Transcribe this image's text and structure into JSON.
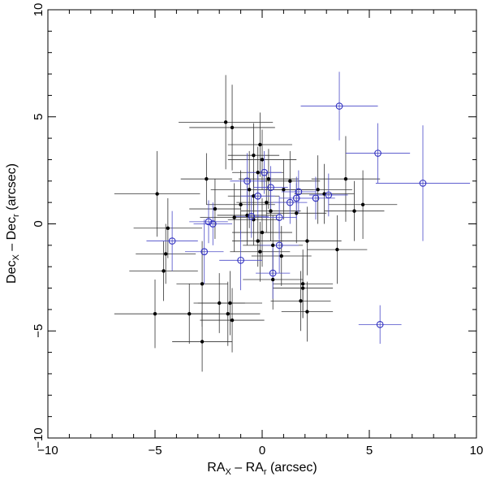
{
  "chart_data": {
    "type": "scatter",
    "title": "",
    "xlabel": {
      "main": "RA",
      "sub1": "X",
      "mid": " – RA",
      "sub2": "r",
      "tail": " (arcsec)"
    },
    "ylabel": {
      "main": "Dec",
      "sub1": "X",
      "mid": " – Dec",
      "sub2": "r",
      "tail": " (arcsec)"
    },
    "xlim": [
      -10,
      10
    ],
    "ylim": [
      -10,
      10
    ],
    "xticks": [
      -10,
      -5,
      0,
      5,
      10
    ],
    "yticks": [
      -10,
      -5,
      0,
      5,
      10
    ],
    "xtick_labels": [
      "−10",
      "−5",
      "0",
      "5",
      "10"
    ],
    "ytick_labels": [
      "−10",
      "−5",
      "0",
      "5",
      "10"
    ],
    "colors": {
      "black_series": "#000000",
      "blue_series": "#3030c0",
      "errorbar_black": "#333333",
      "errorbar_blue": "#4a4ac8",
      "frame": "#000000"
    },
    "series": [
      {
        "name": "filled",
        "marker": "filled-circle",
        "points": [
          {
            "x": -4.9,
            "y": 1.4,
            "ex": 2.0,
            "ey": 2.0
          },
          {
            "x": -4.4,
            "y": -0.2,
            "ex": 1.6,
            "ey": 1.4
          },
          {
            "x": -4.5,
            "y": -1.4,
            "ex": 1.4,
            "ey": 1.4
          },
          {
            "x": -4.6,
            "y": -2.2,
            "ex": 1.6,
            "ey": 1.4
          },
          {
            "x": -5.0,
            "y": -4.2,
            "ex": 1.9,
            "ey": 1.6
          },
          {
            "x": -3.4,
            "y": -4.2,
            "ex": 1.4,
            "ey": 1.4
          },
          {
            "x": -2.8,
            "y": -5.5,
            "ex": 1.4,
            "ey": 1.4
          },
          {
            "x": -2.8,
            "y": -2.8,
            "ex": 1.2,
            "ey": 2.0
          },
          {
            "x": -2.6,
            "y": 2.1,
            "ex": 1.2,
            "ey": 1.2
          },
          {
            "x": -2.2,
            "y": 0.7,
            "ex": 1.2,
            "ey": 1.4
          },
          {
            "x": -1.7,
            "y": 4.75,
            "ex": 2.2,
            "ey": 2.2
          },
          {
            "x": -1.4,
            "y": 4.5,
            "ex": 2.0,
            "ey": 2.0
          },
          {
            "x": -1.3,
            "y": 0.3,
            "ex": 1.6,
            "ey": 1.6
          },
          {
            "x": -1.5,
            "y": -3.7,
            "ex": 1.5,
            "ey": 1.5
          },
          {
            "x": -1.6,
            "y": -4.2,
            "ex": 1.5,
            "ey": 1.5
          },
          {
            "x": -1.4,
            "y": -4.5,
            "ex": 1.5,
            "ey": 1.5
          },
          {
            "x": -2.0,
            "y": -3.7,
            "ex": 1.2,
            "ey": 1.4
          },
          {
            "x": -1.0,
            "y": 0.9,
            "ex": 1.6,
            "ey": 1.6
          },
          {
            "x": -0.6,
            "y": 1.6,
            "ex": 1.8,
            "ey": 1.8
          },
          {
            "x": -0.4,
            "y": 3.2,
            "ex": 1.2,
            "ey": 1.5
          },
          {
            "x": -0.2,
            "y": 2.4,
            "ex": 1.2,
            "ey": 1.2
          },
          {
            "x": -0.1,
            "y": 3.7,
            "ex": 1.5,
            "ey": 1.5
          },
          {
            "x": 0.0,
            "y": 3.0,
            "ex": 1.6,
            "ey": 1.4
          },
          {
            "x": 0.3,
            "y": 2.1,
            "ex": 1.4,
            "ey": 1.4
          },
          {
            "x": -0.7,
            "y": 0.4,
            "ex": 1.4,
            "ey": 1.4
          },
          {
            "x": -0.4,
            "y": 1.3,
            "ex": 1.2,
            "ey": 1.2
          },
          {
            "x": 0.2,
            "y": 1.0,
            "ex": 1.4,
            "ey": 1.4
          },
          {
            "x": 0.4,
            "y": 0.6,
            "ex": 1.4,
            "ey": 1.4
          },
          {
            "x": -0.4,
            "y": 0.2,
            "ex": 1.2,
            "ey": 1.2
          },
          {
            "x": 0.0,
            "y": -0.4,
            "ex": 1.4,
            "ey": 1.6
          },
          {
            "x": -0.2,
            "y": -0.8,
            "ex": 1.2,
            "ey": 1.2
          },
          {
            "x": -0.1,
            "y": -1.3,
            "ex": 1.4,
            "ey": 1.4
          },
          {
            "x": 0.5,
            "y": -1.0,
            "ex": 1.4,
            "ey": 1.4
          },
          {
            "x": 0.5,
            "y": -2.6,
            "ex": 1.4,
            "ey": 1.4
          },
          {
            "x": 0.9,
            "y": -1.5,
            "ex": 1.4,
            "ey": 1.4
          },
          {
            "x": 1.0,
            "y": 1.6,
            "ex": 1.4,
            "ey": 1.4
          },
          {
            "x": 1.3,
            "y": 2.0,
            "ex": 1.4,
            "ey": 1.4
          },
          {
            "x": 1.6,
            "y": 0.5,
            "ex": 1.4,
            "ey": 1.4
          },
          {
            "x": 1.9,
            "y": -2.8,
            "ex": 1.4,
            "ey": 1.6
          },
          {
            "x": 1.8,
            "y": -3.6,
            "ex": 1.4,
            "ey": 1.4
          },
          {
            "x": 2.1,
            "y": -4.1,
            "ex": 1.2,
            "ey": 1.4
          },
          {
            "x": 1.9,
            "y": -3.0,
            "ex": 1.4,
            "ey": 1.4
          },
          {
            "x": 2.1,
            "y": -0.8,
            "ex": 1.6,
            "ey": 1.6
          },
          {
            "x": 2.6,
            "y": 1.6,
            "ex": 1.6,
            "ey": 1.6
          },
          {
            "x": 2.9,
            "y": 1.4,
            "ex": 1.4,
            "ey": 1.4
          },
          {
            "x": 3.5,
            "y": -1.2,
            "ex": 1.4,
            "ey": 1.6
          },
          {
            "x": 3.9,
            "y": 2.1,
            "ex": 1.6,
            "ey": 2.0
          },
          {
            "x": 4.3,
            "y": 0.6,
            "ex": 1.4,
            "ey": 1.4
          },
          {
            "x": 4.7,
            "y": 0.9,
            "ex": 1.6,
            "ey": 1.6
          }
        ]
      },
      {
        "name": "open",
        "marker": "open-circle",
        "points": [
          {
            "x": 3.6,
            "y": 5.5,
            "ex": 1.8,
            "ey": 1.6
          },
          {
            "x": 5.4,
            "y": 3.3,
            "ex": 1.5,
            "ey": 1.4
          },
          {
            "x": 7.5,
            "y": 1.9,
            "ex": 2.2,
            "ey": 2.7
          },
          {
            "x": 5.5,
            "y": -4.7,
            "ex": 1.0,
            "ey": 0.9
          },
          {
            "x": -4.2,
            "y": -0.8,
            "ex": 1.2,
            "ey": 1.4
          },
          {
            "x": -2.7,
            "y": -1.3,
            "ex": 0.9,
            "ey": 1.5
          },
          {
            "x": -2.5,
            "y": 0.1,
            "ex": 0.9,
            "ey": 1.0
          },
          {
            "x": -2.3,
            "y": 0.0,
            "ex": 0.9,
            "ey": 1.0
          },
          {
            "x": -1.0,
            "y": -1.7,
            "ex": 1.0,
            "ey": 1.4
          },
          {
            "x": -0.7,
            "y": 2.0,
            "ex": 0.8,
            "ey": 1.3
          },
          {
            "x": -0.5,
            "y": 0.35,
            "ex": 0.8,
            "ey": 1.0
          },
          {
            "x": -0.2,
            "y": 1.3,
            "ex": 0.8,
            "ey": 1.0
          },
          {
            "x": 0.1,
            "y": 2.4,
            "ex": 0.8,
            "ey": 1.0
          },
          {
            "x": 0.4,
            "y": 1.7,
            "ex": 0.8,
            "ey": 1.0
          },
          {
            "x": 0.8,
            "y": 0.3,
            "ex": 0.8,
            "ey": 1.0
          },
          {
            "x": 0.8,
            "y": -1.0,
            "ex": 0.9,
            "ey": 1.3
          },
          {
            "x": 0.5,
            "y": -2.3,
            "ex": 0.8,
            "ey": 1.2
          },
          {
            "x": 1.3,
            "y": 1.0,
            "ex": 0.8,
            "ey": 1.0
          },
          {
            "x": 1.6,
            "y": 1.2,
            "ex": 0.8,
            "ey": 1.0
          },
          {
            "x": 1.7,
            "y": 1.5,
            "ex": 0.8,
            "ey": 1.0
          },
          {
            "x": 2.5,
            "y": 1.2,
            "ex": 0.9,
            "ey": 1.0
          },
          {
            "x": 3.1,
            "y": 1.35,
            "ex": 0.9,
            "ey": 1.0
          }
        ]
      }
    ]
  }
}
